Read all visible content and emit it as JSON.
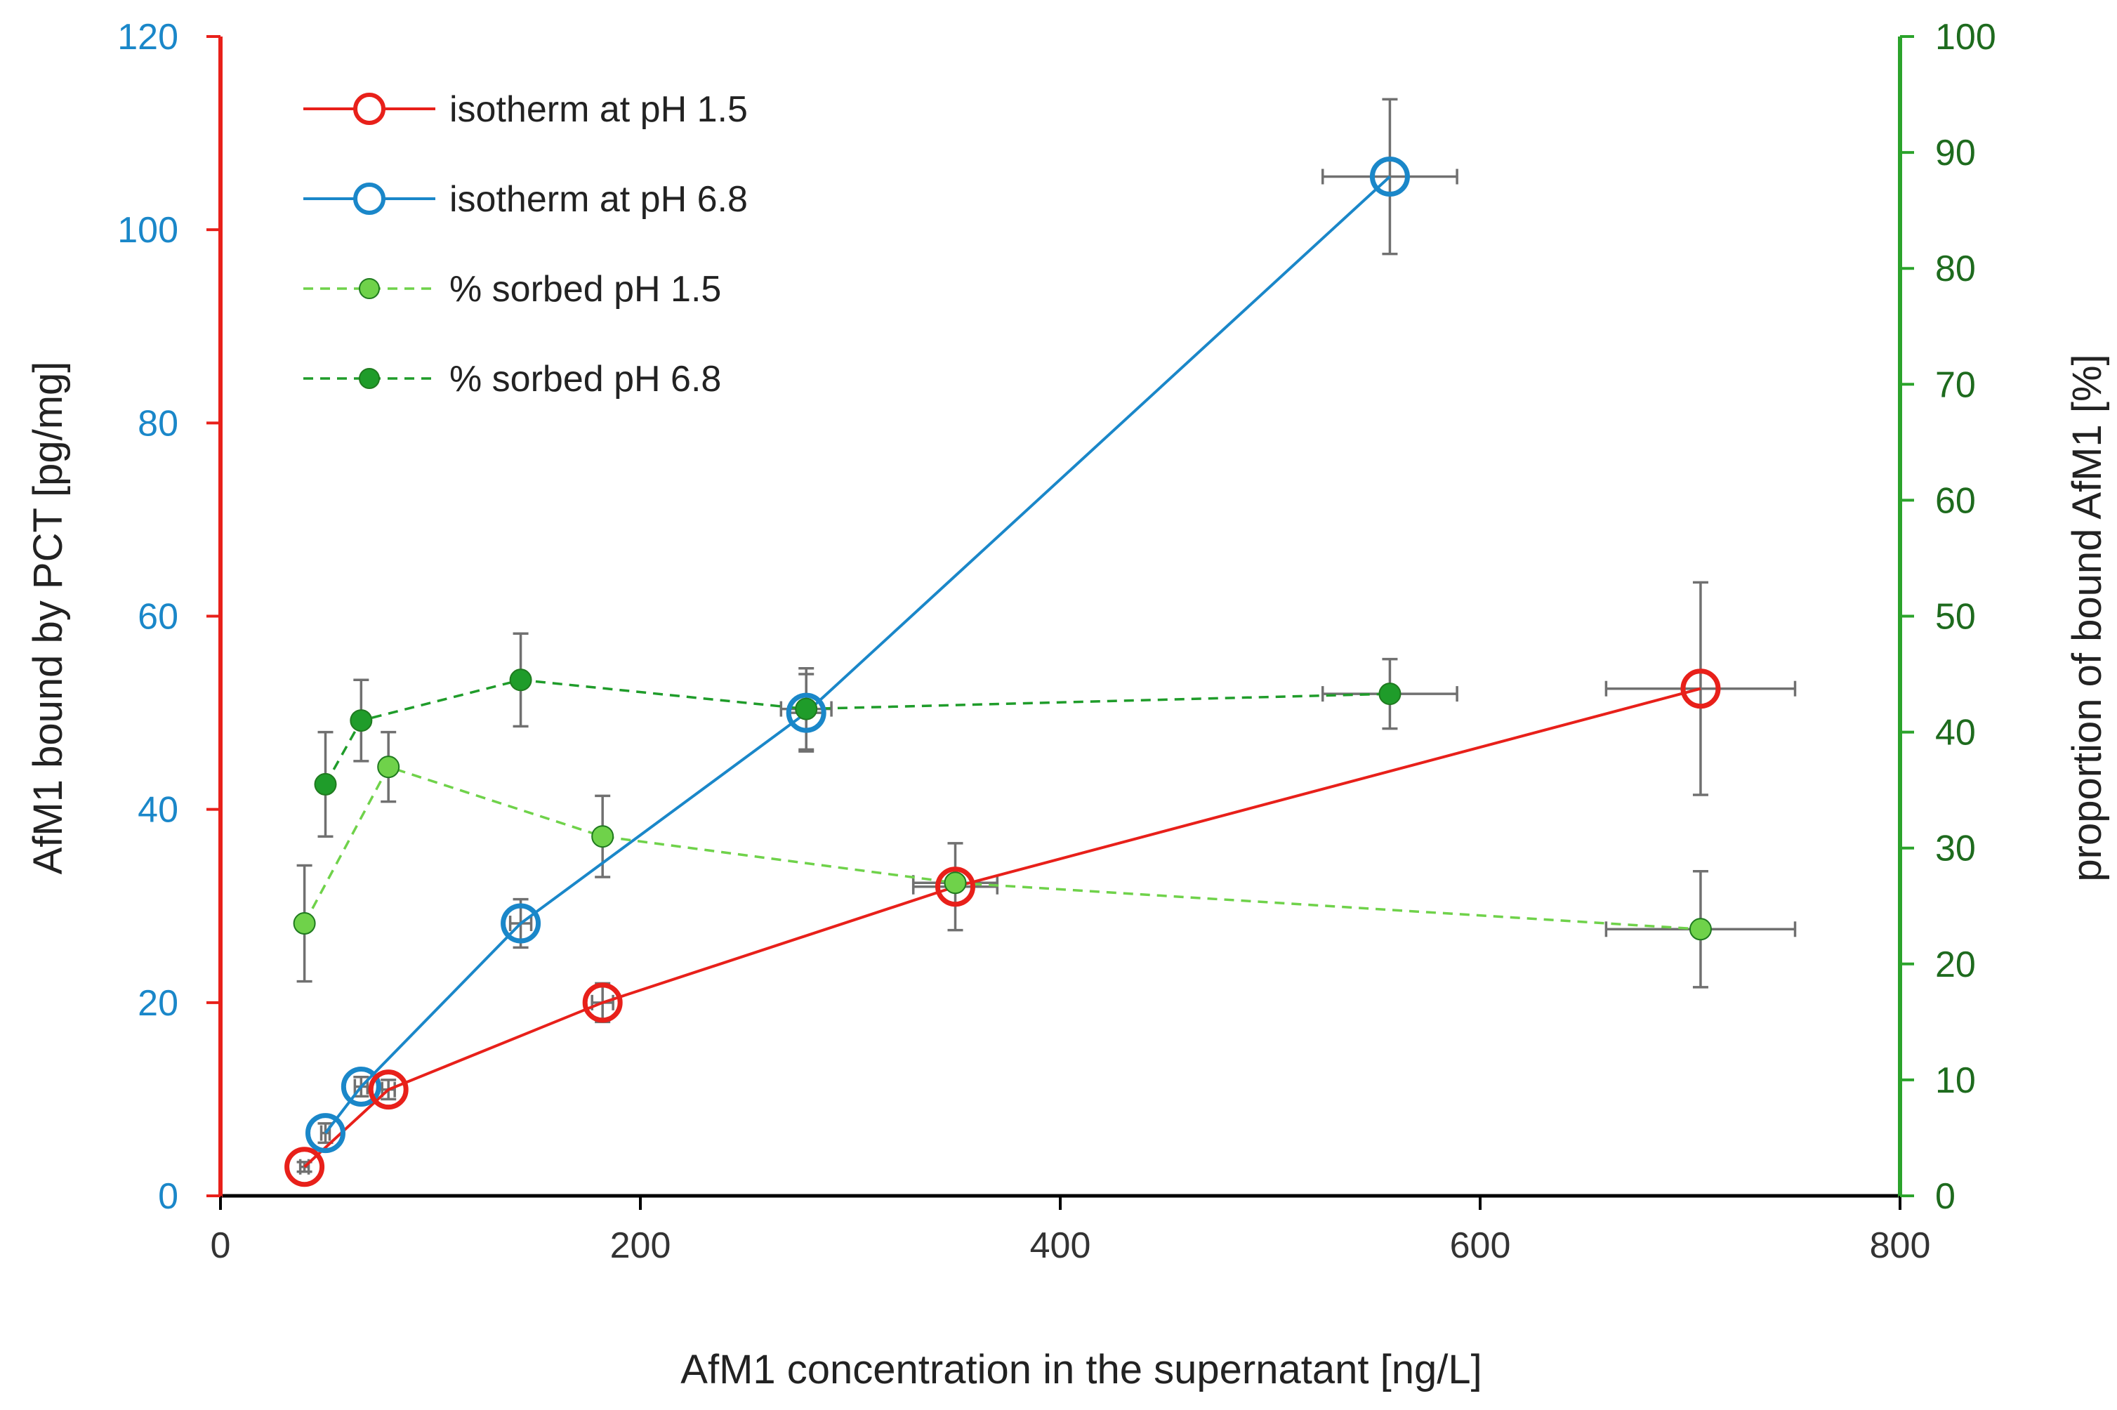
{
  "chart_data": {
    "type": "scatter",
    "title": "",
    "xlabel": "AfM1 concentration in the supernatant [ng/L]",
    "ylabel_left": "AfM1 bound by PCT [pg/mg]",
    "ylabel_right": "proportion of bound AfM1 [%]",
    "xlim": [
      0,
      800
    ],
    "ylim_left": [
      0,
      120
    ],
    "ylim_right": [
      0,
      100
    ],
    "x_ticks": [
      0,
      200,
      400,
      600,
      800
    ],
    "y_left_ticks": [
      0,
      20,
      40,
      60,
      80,
      100,
      120
    ],
    "y_right_ticks": [
      0,
      10,
      20,
      30,
      40,
      50,
      60,
      70,
      80,
      90,
      100
    ],
    "grid": false,
    "legend_position": "top-left",
    "colors": {
      "left_axis": "#e8201a",
      "right_axis": "#2ba32b",
      "left_ticks": "#1a87c9",
      "right_ticks": "#1e6b1e",
      "errorbar": "#707070"
    },
    "series": [
      {
        "name": "isotherm at pH 1.5",
        "axis": "left",
        "color": "#e8201a",
        "marker": "open-circle",
        "line": "solid",
        "x": [
          40,
          80,
          182,
          350,
          705
        ],
        "y": [
          3,
          11,
          20,
          32,
          52.5
        ],
        "xerr": [
          2,
          3,
          5,
          20,
          45
        ],
        "yerr": [
          0.5,
          1,
          2,
          4.5,
          11
        ]
      },
      {
        "name": "isotherm at pH 6.8",
        "axis": "left",
        "color": "#1a87c9",
        "marker": "open-circle",
        "line": "solid",
        "x": [
          50,
          67,
          143,
          279,
          557
        ],
        "y": [
          6.5,
          11.3,
          28.2,
          50,
          105.5
        ],
        "xerr": [
          2,
          3,
          5,
          8,
          32
        ],
        "yerr": [
          1,
          1,
          2.5,
          4,
          8
        ]
      },
      {
        "name": "% sorbed pH 1.5",
        "axis": "right",
        "color": "#6fd24a",
        "marker": "filled-circle",
        "line": "dashed",
        "x": [
          40,
          80,
          182,
          350,
          705
        ],
        "y": [
          23.5,
          37,
          31,
          27,
          23
        ],
        "xerr": [
          0,
          0,
          0,
          20,
          45
        ],
        "yerr": [
          5,
          3,
          3.5,
          0,
          5
        ]
      },
      {
        "name": "% sorbed pH 6.8",
        "axis": "right",
        "color": "#1f9c2a",
        "marker": "filled-circle",
        "line": "dashed",
        "x": [
          50,
          67,
          143,
          279,
          557
        ],
        "y": [
          35.5,
          41,
          44.5,
          42,
          43.3
        ],
        "xerr": [
          0,
          0,
          0,
          12,
          32
        ],
        "yerr": [
          4.5,
          3.5,
          4,
          3.5,
          3
        ]
      }
    ]
  }
}
